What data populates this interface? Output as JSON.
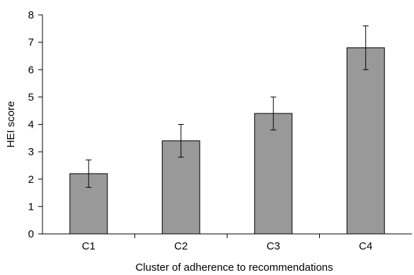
{
  "chart_data": {
    "type": "bar",
    "categories": [
      "C1",
      "C2",
      "C3",
      "C4"
    ],
    "values": [
      2.2,
      3.4,
      4.4,
      6.8
    ],
    "error_low": [
      1.7,
      2.8,
      3.8,
      6.0
    ],
    "error_high": [
      2.7,
      4.0,
      5.0,
      7.6
    ],
    "title": "",
    "xlabel": "Cluster of adherence to recommendations",
    "ylabel": "HEI score",
    "ylim": [
      0,
      8
    ],
    "yticks": [
      "0",
      "1",
      "2",
      "3",
      "4",
      "5",
      "6",
      "7",
      "8"
    ],
    "grid": false,
    "bar_color": "#999999"
  }
}
